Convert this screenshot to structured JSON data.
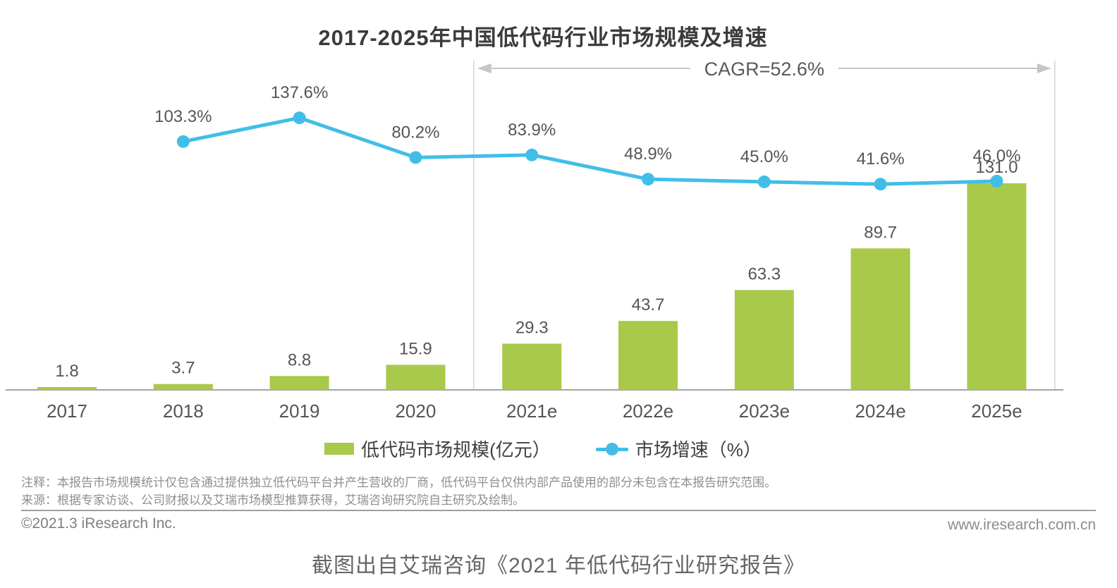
{
  "title": "2017-2025年中国低代码行业市场规模及增速",
  "chart_data": {
    "type": "bar+line combo",
    "title": "2017-2025年中国低代码行业市场规模及增速",
    "categories": [
      "2017",
      "2018",
      "2019",
      "2020",
      "2021e",
      "2022e",
      "2023e",
      "2024e",
      "2025e"
    ],
    "series": [
      {
        "name": "低代码市场规模(亿元）",
        "type": "bar",
        "color": "#a8c94a",
        "unit": "亿元",
        "axis": "left",
        "values": [
          1.8,
          3.7,
          8.8,
          15.9,
          29.3,
          43.7,
          63.3,
          89.7,
          131.0
        ]
      },
      {
        "name": "市场增速（%）",
        "type": "line",
        "color": "#41bee8",
        "unit": "%",
        "axis": "right",
        "values": [
          null,
          103.3,
          137.6,
          80.2,
          83.9,
          48.9,
          45.0,
          41.6,
          46.0
        ]
      }
    ],
    "xlabel": "",
    "ylabel": "",
    "y_left_range": [
      0,
      140
    ],
    "y_right_range": [
      0,
      160
    ],
    "grid": false,
    "axes_hidden": true,
    "legend_position": "bottom",
    "annotations": {
      "cagr_label": "CAGR=52.6%",
      "cagr_span": [
        "2021e",
        "2025e"
      ],
      "forecast_divider_between": [
        "2020",
        "2021e"
      ]
    }
  },
  "legend": [
    {
      "label": "低代码市场规模(亿元）",
      "color": "#a8c94a",
      "marker": "bar"
    },
    {
      "label": "市场增速（%）",
      "color": "#41bee8",
      "marker": "line-dot"
    }
  ],
  "notes": [
    "注释：本报告市场规模统计仅包含通过提供独立低代码平台并产生营收的厂商，低代码平台仅供内部产品使用的部分未包含在本报告研究范围。",
    "来源：根据专家访谈、公司财报以及艾瑞市场模型推算获得，艾瑞咨询研究院自主研究及绘制。"
  ],
  "footer": {
    "copyright": "©2021.3 iResearch Inc.",
    "website": "www.iresearch.com.cn"
  },
  "caption": "截图出自艾瑞咨询《2021 年低代码行业研究报告》",
  "colors": {
    "bar": "#a8c94a",
    "line": "#41bee8",
    "label_text": "#555555",
    "axis_line": "#a4a4a4",
    "bracket_line": "#d4d4d4",
    "arrow": "#c6c6c6"
  }
}
